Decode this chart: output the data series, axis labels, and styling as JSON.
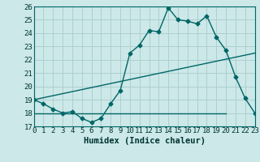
{
  "xlabel": "Humidex (Indice chaleur)",
  "bg_color": "#cce8e8",
  "line_color": "#006666",
  "ylim": [
    17,
    26
  ],
  "xlim": [
    0,
    23
  ],
  "yticks": [
    17,
    18,
    19,
    20,
    21,
    22,
    23,
    24,
    25,
    26
  ],
  "xticks": [
    0,
    1,
    2,
    3,
    4,
    5,
    6,
    7,
    8,
    9,
    10,
    11,
    12,
    13,
    14,
    15,
    16,
    17,
    18,
    19,
    20,
    21,
    22,
    23
  ],
  "series1_x": [
    0,
    1,
    2,
    3,
    4,
    5,
    6,
    7,
    8,
    9,
    10,
    11,
    12,
    13,
    14,
    15,
    16,
    17,
    18,
    19,
    20,
    21,
    22,
    23
  ],
  "series1_y": [
    19.0,
    18.7,
    18.3,
    18.0,
    18.1,
    17.6,
    17.3,
    17.6,
    18.7,
    19.7,
    22.5,
    23.1,
    24.2,
    24.1,
    25.9,
    25.0,
    24.9,
    24.7,
    25.3,
    23.7,
    22.7,
    20.7,
    19.1,
    18.0
  ],
  "series2_x": [
    0,
    23
  ],
  "series2_y": [
    19.0,
    22.5
  ],
  "series3_x": [
    0,
    20
  ],
  "series3_y": [
    18.0,
    18.0
  ],
  "grid_color": "#aacccc",
  "font_color": "#003333",
  "tick_fontsize": 6.5,
  "xlabel_fontsize": 7.5
}
